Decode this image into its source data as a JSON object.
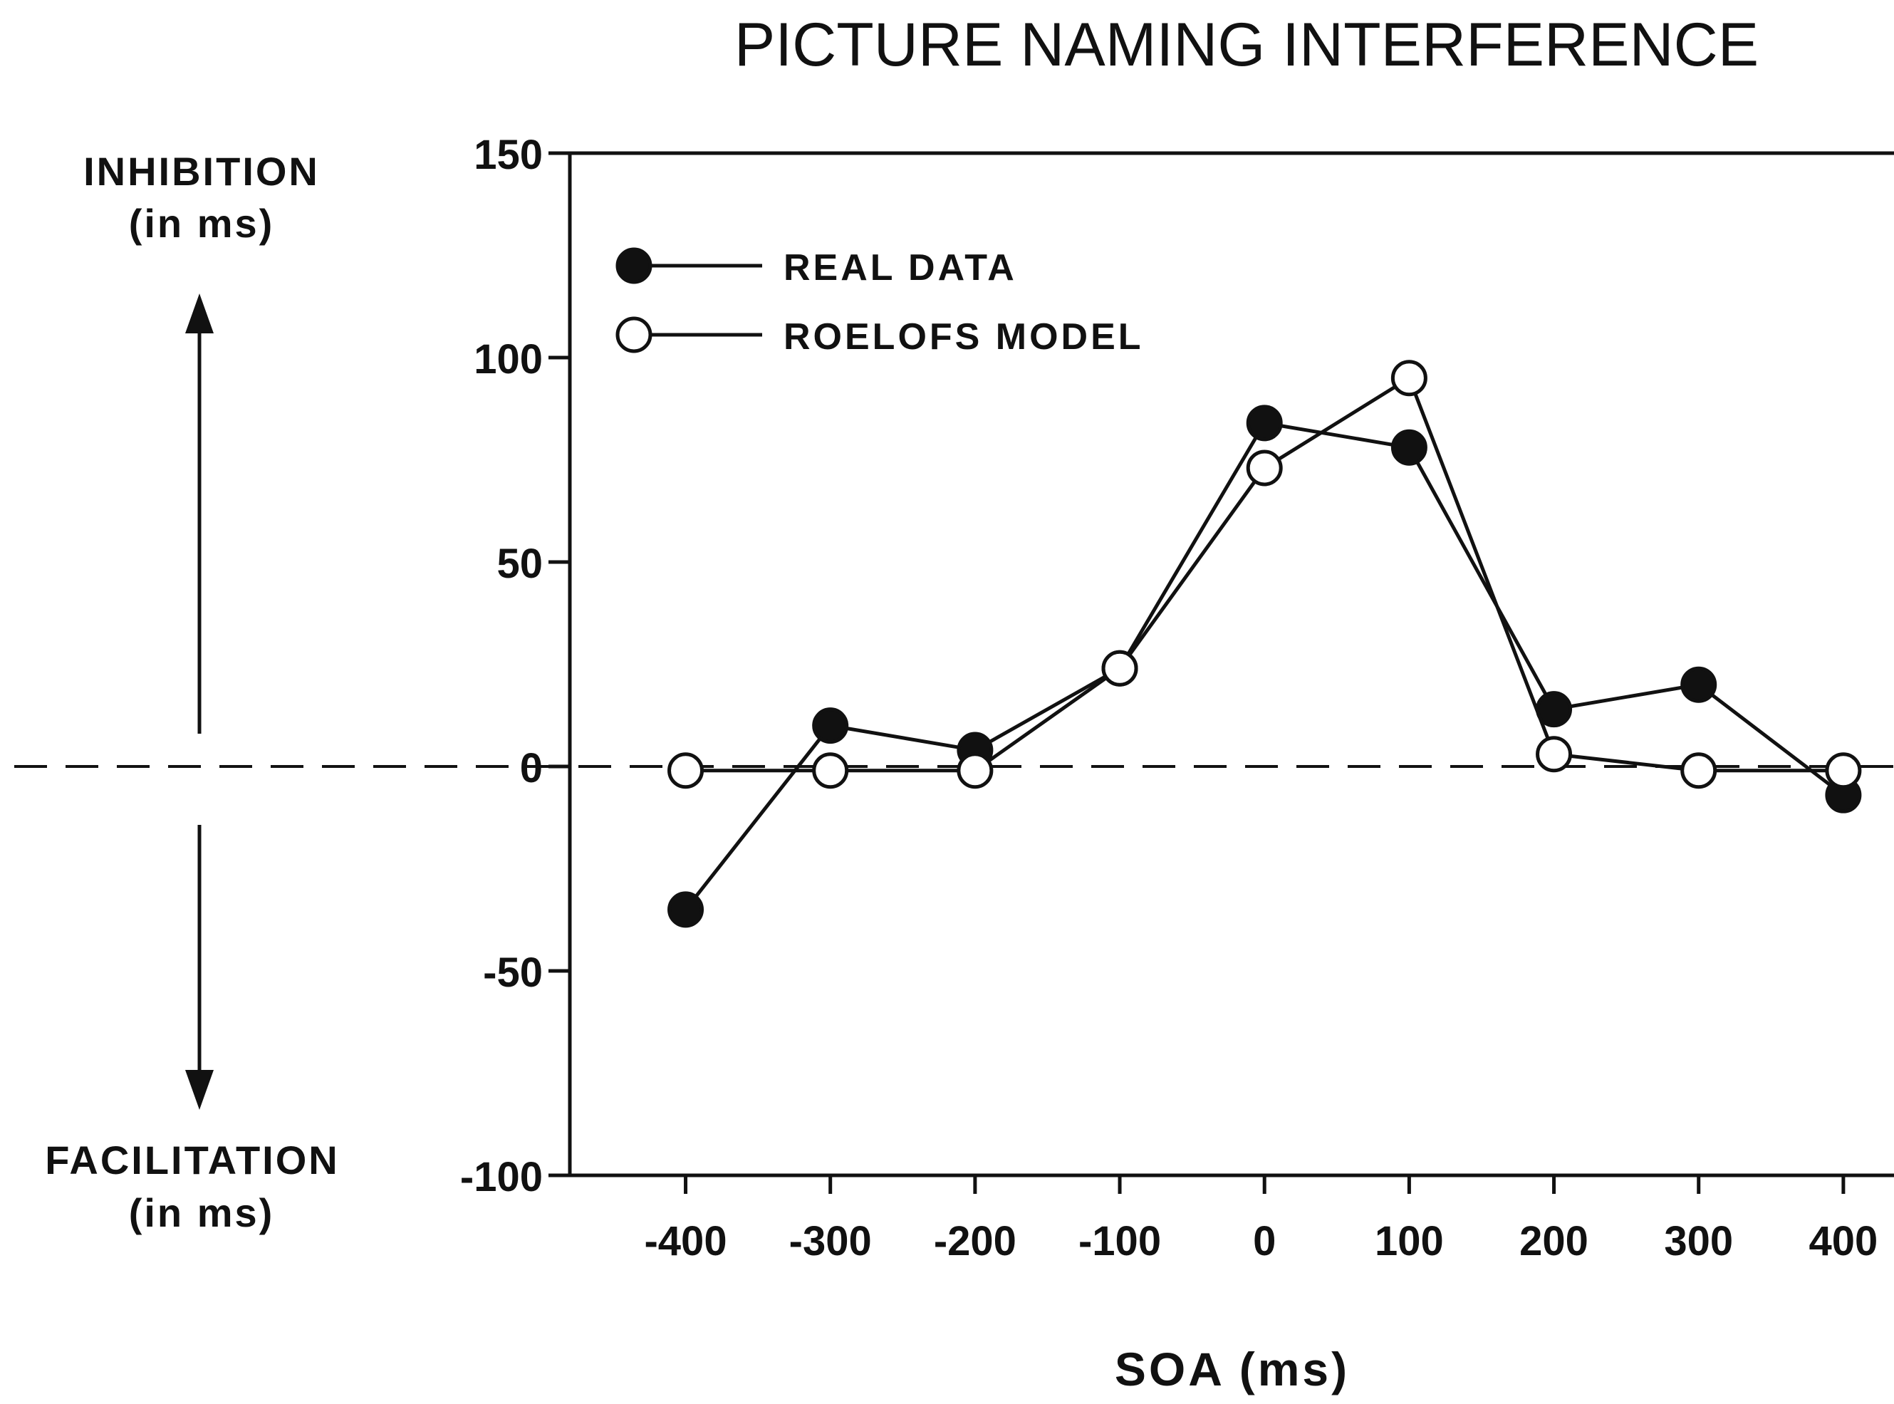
{
  "chart_data": {
    "type": "line",
    "title": "PICTURE NAMING INTERFERENCE",
    "xlabel": "SOA (ms)",
    "ylabel_top": [
      "INHIBITION",
      "(in ms)"
    ],
    "ylabel_bottom": [
      "FACILITATION",
      "(in ms)"
    ],
    "x": [
      -400,
      -300,
      -200,
      -100,
      0,
      100,
      200,
      300,
      400
    ],
    "x_tick_labels": [
      "-400",
      "-300",
      "-200",
      "-100",
      "0",
      "100",
      "200",
      "300",
      "400"
    ],
    "y_ticks": [
      150,
      100,
      50,
      0,
      -50,
      -100
    ],
    "y_tick_labels": [
      "150",
      "100",
      "50",
      "0",
      "-50",
      "-100"
    ],
    "xlim": [
      -480,
      435
    ],
    "ylim": [
      -100,
      150
    ],
    "grid": false,
    "zero_line": "dashed",
    "legend_position": "top-left",
    "series": [
      {
        "name": "REAL DATA",
        "marker": "filled-circle",
        "values": [
          -35,
          10,
          4,
          24,
          84,
          78,
          14,
          20,
          -7
        ]
      },
      {
        "name": "ROELOFS MODEL",
        "marker": "open-circle",
        "values": [
          -1,
          -1,
          -1,
          24,
          73,
          95,
          3,
          -1,
          -1
        ]
      }
    ],
    "colors": {
      "line": "#111111",
      "marker_fill_open": "#ffffff",
      "background": "#ffffff"
    }
  }
}
